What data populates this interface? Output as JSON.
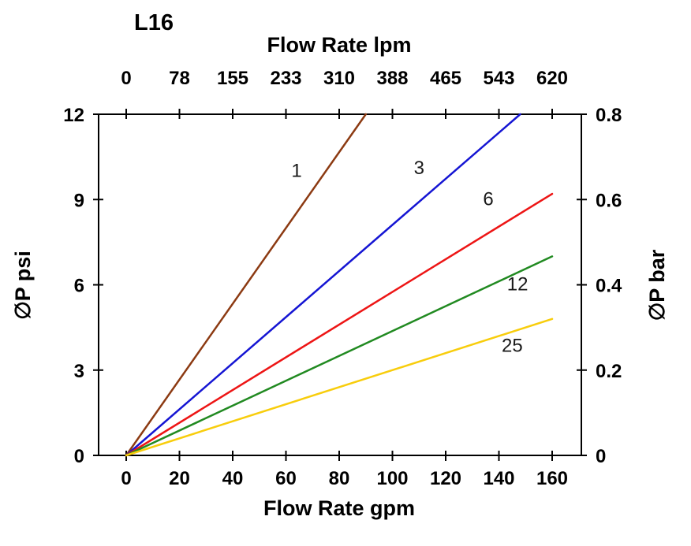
{
  "chart_data": {
    "type": "line",
    "title": "L16",
    "axes": {
      "x_top": {
        "label": "Flow Rate lpm",
        "ticks": [
          "0",
          "78",
          "155",
          "233",
          "310",
          "388",
          "465",
          "543",
          "620"
        ],
        "range": [
          0,
          620
        ]
      },
      "x_bottom": {
        "label": "Flow Rate gpm",
        "ticks": [
          "0",
          "20",
          "40",
          "60",
          "80",
          "100",
          "120",
          "140",
          "160"
        ],
        "range": [
          0,
          160
        ]
      },
      "y_left": {
        "label": "∅P psi",
        "ticks": [
          "12",
          "9",
          "6",
          "3",
          "0"
        ],
        "range": [
          0,
          12
        ]
      },
      "y_right": {
        "label": "∅P bar",
        "ticks": [
          "0.8",
          "0.6",
          "0.4",
          "0.2",
          "0"
        ],
        "range": [
          0,
          0.8
        ]
      }
    },
    "grid": false,
    "legend": "labels-on-lines",
    "series": [
      {
        "name": "1",
        "color": "#8c3a12",
        "points": [
          [
            0,
            0
          ],
          [
            90,
            12
          ]
        ],
        "label_at": [
          64,
          9.8
        ]
      },
      {
        "name": "3",
        "color": "#1515d3",
        "points": [
          [
            0,
            0
          ],
          [
            148,
            12
          ]
        ],
        "label_at": [
          110,
          9.9
        ]
      },
      {
        "name": "6",
        "color": "#ed1515",
        "points": [
          [
            0,
            0
          ],
          [
            160,
            9.2
          ]
        ],
        "label_at": [
          136,
          8.8
        ]
      },
      {
        "name": "12",
        "color": "#218a21",
        "points": [
          [
            0,
            0
          ],
          [
            160,
            7.0
          ]
        ],
        "label_at": [
          147,
          5.8
        ]
      },
      {
        "name": "25",
        "color": "#f8cd0c",
        "points": [
          [
            0,
            0
          ],
          [
            160,
            4.8
          ]
        ],
        "label_at": [
          145,
          3.65
        ]
      }
    ]
  }
}
